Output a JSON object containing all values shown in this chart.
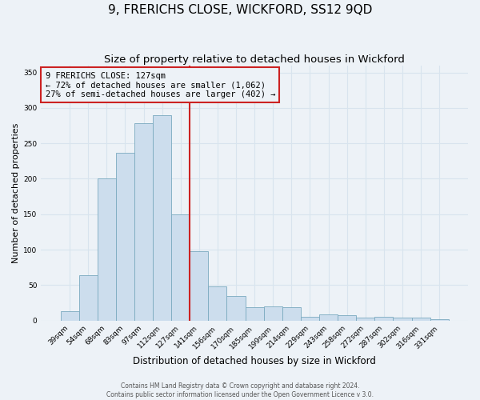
{
  "title": "9, FRERICHS CLOSE, WICKFORD, SS12 9QD",
  "subtitle": "Size of property relative to detached houses in Wickford",
  "xlabel": "Distribution of detached houses by size in Wickford",
  "ylabel": "Number of detached properties",
  "categories": [
    "39sqm",
    "54sqm",
    "68sqm",
    "83sqm",
    "97sqm",
    "112sqm",
    "127sqm",
    "141sqm",
    "156sqm",
    "170sqm",
    "185sqm",
    "199sqm",
    "214sqm",
    "229sqm",
    "243sqm",
    "258sqm",
    "272sqm",
    "287sqm",
    "302sqm",
    "316sqm",
    "331sqm"
  ],
  "values": [
    13,
    64,
    200,
    237,
    278,
    290,
    150,
    98,
    48,
    35,
    19,
    20,
    19,
    5,
    9,
    7,
    4,
    5,
    4,
    4,
    2
  ],
  "bar_color": "#ccdded",
  "bar_edge_color": "#7aaabf",
  "vline_color": "#cc2222",
  "annotation_title": "9 FRERICHS CLOSE: 127sqm",
  "annotation_line1": "← 72% of detached houses are smaller (1,062)",
  "annotation_line2": "27% of semi-detached houses are larger (402) →",
  "annotation_box_edgecolor": "#cc2222",
  "ylim": [
    0,
    360
  ],
  "yticks": [
    0,
    50,
    100,
    150,
    200,
    250,
    300,
    350
  ],
  "footer1": "Contains HM Land Registry data © Crown copyright and database right 2024.",
  "footer2": "Contains public sector information licensed under the Open Government Licence v 3.0.",
  "background_color": "#edf2f7",
  "plot_bg_color": "#edf2f7",
  "grid_color": "#d8e4ee",
  "title_fontsize": 11,
  "subtitle_fontsize": 9.5,
  "xlabel_fontsize": 8.5,
  "ylabel_fontsize": 8,
  "tick_fontsize": 6.5,
  "footer_fontsize": 5.5,
  "annot_fontsize": 7.5
}
